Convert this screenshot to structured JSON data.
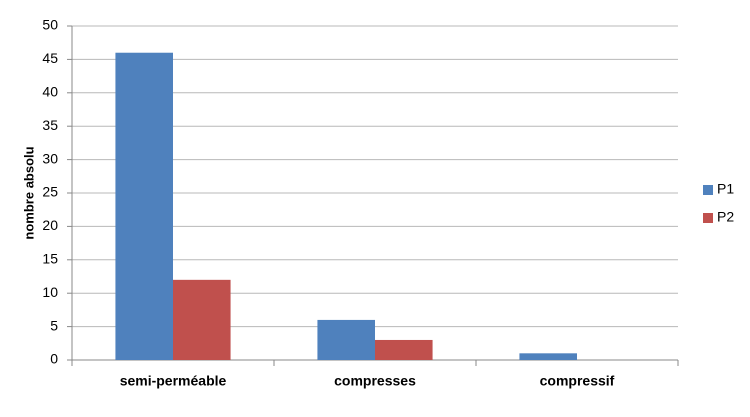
{
  "chart_data": {
    "type": "bar",
    "y_label": "nombre absolu",
    "categories": [
      "semi-perméable",
      "compresses",
      "compressif"
    ],
    "series": [
      {
        "name": "P1",
        "color": "#4f81bd",
        "values": [
          46,
          6,
          1
        ]
      },
      {
        "name": "P2",
        "color": "#c0504d",
        "values": [
          12,
          3,
          0
        ]
      }
    ],
    "ylim": [
      0,
      50
    ],
    "yticks": [
      0,
      5,
      10,
      15,
      20,
      25,
      30,
      35,
      40,
      45,
      50
    ],
    "grid": true,
    "legend": "right"
  }
}
